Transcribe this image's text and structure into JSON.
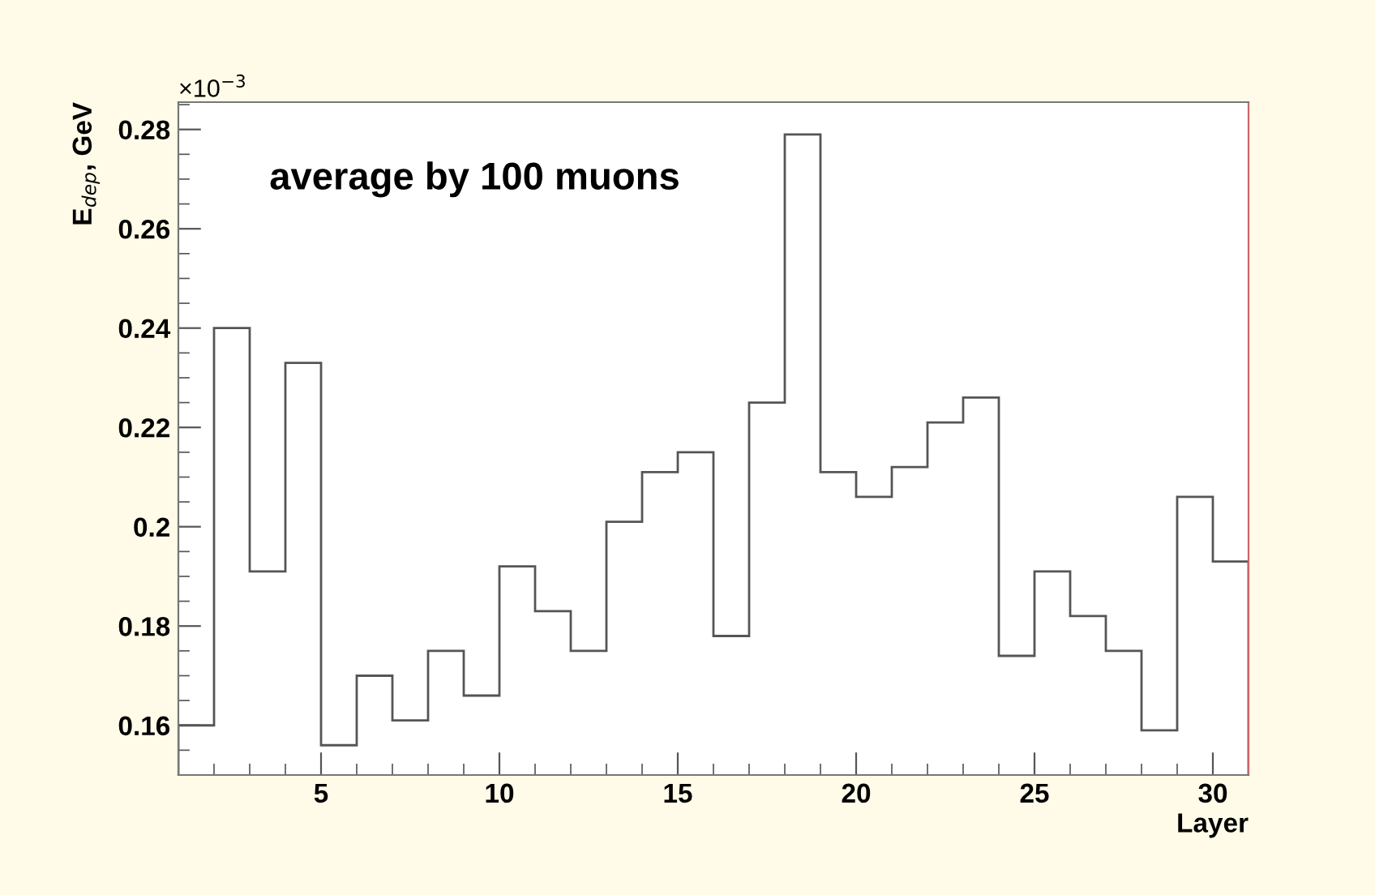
{
  "chart_data": {
    "type": "histogram",
    "xlabel": "Layer",
    "ylabel": "E$_{dep}$, GeV",
    "bins": [
      1,
      2,
      3,
      4,
      5,
      6,
      7,
      8,
      9,
      10,
      11,
      12,
      13,
      14,
      15,
      16,
      17,
      18,
      19,
      20,
      21,
      22,
      23,
      24,
      25,
      26,
      27,
      28,
      29,
      30,
      31
    ],
    "values": [
      0.16,
      0.24,
      0.191,
      0.233,
      0.156,
      0.17,
      0.161,
      0.175,
      0.166,
      0.192,
      0.183,
      0.175,
      0.201,
      0.211,
      0.215,
      0.178,
      0.225,
      0.279,
      0.211,
      0.206,
      0.212,
      0.221,
      0.226,
      0.174,
      0.191,
      0.182,
      0.175,
      0.159,
      0.206,
      0.193
    ],
    "color": "#555555",
    "xlim": [
      1,
      31
    ],
    "xticks": [
      5,
      10,
      15,
      20,
      25,
      30
    ],
    "ylim": [
      0.15,
      0.2855
    ],
    "yticks": [
      0.16,
      0.18,
      0.2,
      0.22,
      0.24,
      0.26,
      0.28
    ],
    "annotations": [
      "×10$^{−3}$",
      "average by 100 muons"
    ],
    "grid": false,
    "legend": false
  }
}
